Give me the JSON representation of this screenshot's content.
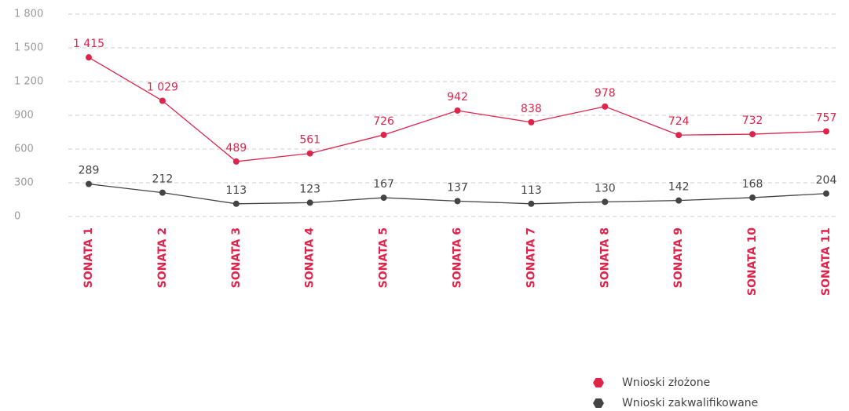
{
  "chart_data": {
    "type": "line",
    "categories": [
      "SONATA 1",
      "SONATA 2",
      "SONATA 3",
      "SONATA 4",
      "SONATA 5",
      "SONATA 6",
      "SONATA 7",
      "SONATA 8",
      "SONATA 9",
      "SONATA 10",
      "SONATA 11"
    ],
    "series": [
      {
        "name": "Wnioski złożone",
        "color": "#e0234a",
        "values": [
          1415,
          1029,
          489,
          561,
          726,
          942,
          838,
          978,
          724,
          732,
          757
        ],
        "value_labels": [
          "1 415",
          "1 029",
          "489",
          "561",
          "726",
          "942",
          "838",
          "978",
          "724",
          "732",
          "757"
        ]
      },
      {
        "name": "Wnioski zakwalifikowane",
        "color": "#444444",
        "values": [
          289,
          212,
          113,
          123,
          167,
          137,
          113,
          130,
          142,
          168,
          204
        ]
      }
    ],
    "ylim": [
      0,
      1800
    ],
    "yticks": [
      0,
      300,
      600,
      900,
      {
        "value": 1200,
        "label": "1 200"
      },
      {
        "value": 1500,
        "label": "1 500"
      },
      {
        "value": 1800,
        "label": "1 800"
      }
    ],
    "grid": true,
    "legend": "bottom-right"
  }
}
